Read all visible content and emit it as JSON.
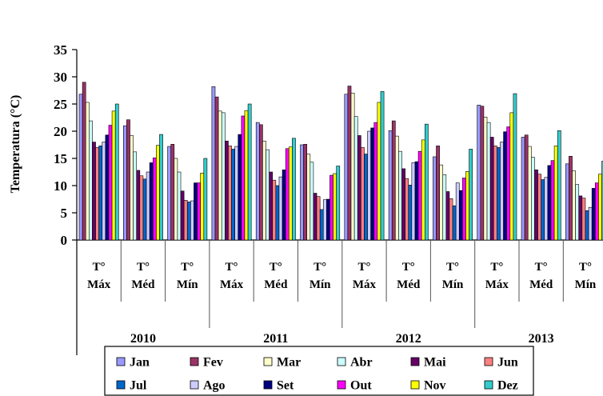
{
  "chart_data": {
    "type": "bar",
    "ylabel": "Temperatura (°C)",
    "ylim": [
      0,
      35
    ],
    "yticks": [
      0,
      5,
      10,
      15,
      20,
      25,
      30,
      35
    ],
    "grid": false,
    "legend_position": "bottom",
    "groups": [
      {
        "year": "2010",
        "categories": [
          "T° Máx",
          "T° Méd",
          "T° Mín"
        ]
      },
      {
        "year": "2011",
        "categories": [
          "T° Máx",
          "T° Méd",
          "T° Mín"
        ]
      },
      {
        "year": "2012",
        "categories": [
          "T° Máx",
          "T° Méd",
          "T° Mín"
        ]
      },
      {
        "year": "2013",
        "categories": [
          "T° Máx",
          "T° Méd",
          "T° Mín"
        ]
      }
    ],
    "series": [
      {
        "name": "Jan",
        "color": "#9999ff",
        "values": [
          26.8,
          21.0,
          17.2,
          28.2,
          21.6,
          17.5,
          26.8,
          20.1,
          15.3,
          24.8,
          18.9,
          14.0
        ]
      },
      {
        "name": "Fev",
        "color": "#993366",
        "values": [
          29.0,
          22.1,
          17.6,
          26.3,
          21.2,
          17.6,
          28.3,
          21.9,
          17.3,
          24.6,
          19.3,
          15.4
        ]
      },
      {
        "name": "Mar",
        "color": "#ffffcc",
        "values": [
          25.3,
          19.2,
          15.0,
          23.7,
          18.2,
          15.8,
          27.0,
          19.1,
          13.8,
          22.6,
          17.2,
          12.7
        ]
      },
      {
        "name": "Abr",
        "color": "#ccffff",
        "values": [
          21.9,
          16.2,
          12.5,
          23.4,
          16.6,
          14.3,
          22.7,
          16.3,
          12.0,
          21.6,
          15.2,
          10.2
        ]
      },
      {
        "name": "Mai",
        "color": "#660066",
        "values": [
          18.0,
          12.8,
          9.0,
          18.2,
          12.5,
          8.6,
          19.2,
          13.1,
          8.9,
          18.9,
          12.9,
          8.1
        ]
      },
      {
        "name": "Jun",
        "color": "#ff8080",
        "values": [
          17.0,
          11.8,
          7.3,
          17.3,
          11.0,
          8.0,
          17.0,
          11.3,
          7.6,
          17.3,
          12.1,
          7.7
        ]
      },
      {
        "name": "Jul",
        "color": "#0066cc",
        "values": [
          17.3,
          11.2,
          7.0,
          16.7,
          10.0,
          5.6,
          15.8,
          10.1,
          6.3,
          17.0,
          11.1,
          5.4
        ]
      },
      {
        "name": "Ago",
        "color": "#ccccff",
        "values": [
          18.0,
          12.5,
          7.2,
          17.2,
          11.6,
          7.4,
          20.0,
          14.2,
          10.5,
          18.0,
          11.5,
          6.0
        ]
      },
      {
        "name": "Set",
        "color": "#000080",
        "values": [
          19.3,
          14.2,
          10.5,
          19.4,
          12.9,
          7.5,
          20.6,
          14.4,
          9.1,
          19.9,
          13.7,
          9.5
        ]
      },
      {
        "name": "Out",
        "color": "#ff00ff",
        "values": [
          21.1,
          15.1,
          10.5,
          22.8,
          16.8,
          11.9,
          21.6,
          16.3,
          11.4,
          20.8,
          14.6,
          10.5
        ]
      },
      {
        "name": "Nov",
        "color": "#ffff00",
        "values": [
          23.7,
          17.4,
          12.3,
          23.8,
          17.1,
          12.2,
          25.3,
          18.4,
          12.6,
          23.4,
          17.3,
          12.1
        ]
      },
      {
        "name": "Dez",
        "color": "#33cccc",
        "values": [
          25.0,
          19.4,
          15.0,
          25.0,
          18.7,
          13.6,
          27.3,
          21.3,
          16.7,
          26.9,
          20.1,
          14.5
        ]
      }
    ]
  }
}
